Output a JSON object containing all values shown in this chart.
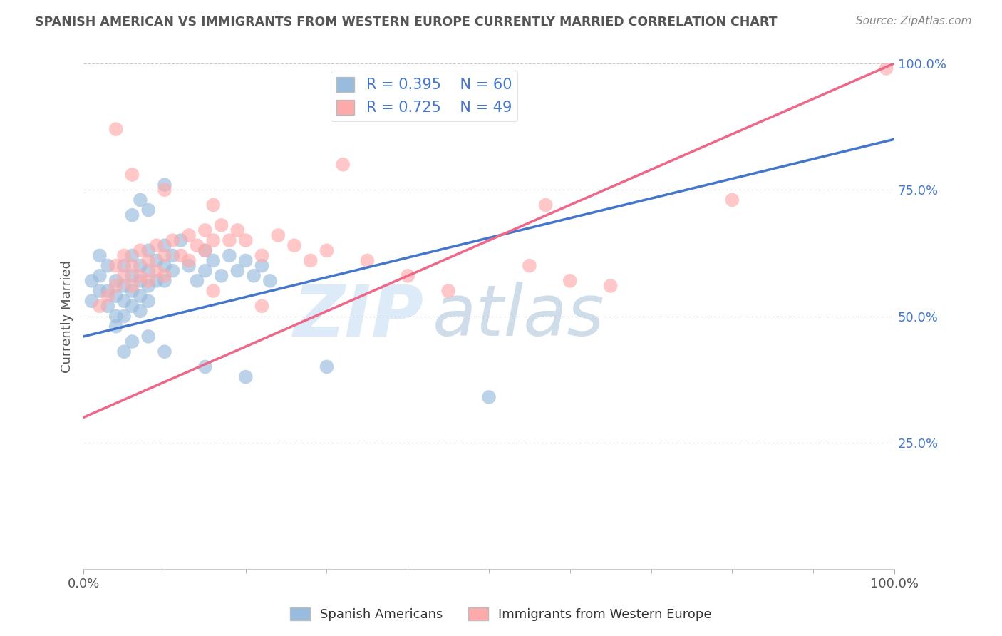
{
  "title": "SPANISH AMERICAN VS IMMIGRANTS FROM WESTERN EUROPE CURRENTLY MARRIED CORRELATION CHART",
  "source": "Source: ZipAtlas.com",
  "ylabel": "Currently Married",
  "xlabel": "",
  "xlim": [
    0,
    1
  ],
  "ylim": [
    0,
    1
  ],
  "xtick_labels": [
    "0.0%",
    "100.0%"
  ],
  "xtick_positions": [
    0,
    1
  ],
  "ytick_labels_right": [
    "25.0%",
    "50.0%",
    "75.0%",
    "100.0%"
  ],
  "ytick_positions_right": [
    0.25,
    0.5,
    0.75,
    1.0
  ],
  "legend_label1": "Spanish Americans",
  "legend_label2": "Immigrants from Western Europe",
  "R1": 0.395,
  "N1": 60,
  "R2": 0.725,
  "N2": 49,
  "blue_color": "#99BBDD",
  "pink_color": "#FFAAAA",
  "blue_line_color": "#4477CC",
  "pink_line_color": "#EE6688",
  "title_color": "#555555",
  "source_color": "#888888",
  "blue_scatter": [
    [
      0.01,
      0.57
    ],
    [
      0.01,
      0.53
    ],
    [
      0.02,
      0.58
    ],
    [
      0.02,
      0.62
    ],
    [
      0.02,
      0.55
    ],
    [
      0.03,
      0.6
    ],
    [
      0.03,
      0.55
    ],
    [
      0.03,
      0.52
    ],
    [
      0.04,
      0.57
    ],
    [
      0.04,
      0.54
    ],
    [
      0.04,
      0.5
    ],
    [
      0.04,
      0.48
    ],
    [
      0.05,
      0.6
    ],
    [
      0.05,
      0.56
    ],
    [
      0.05,
      0.53
    ],
    [
      0.05,
      0.5
    ],
    [
      0.06,
      0.62
    ],
    [
      0.06,
      0.58
    ],
    [
      0.06,
      0.55
    ],
    [
      0.06,
      0.52
    ],
    [
      0.07,
      0.6
    ],
    [
      0.07,
      0.57
    ],
    [
      0.07,
      0.54
    ],
    [
      0.07,
      0.51
    ],
    [
      0.08,
      0.63
    ],
    [
      0.08,
      0.59
    ],
    [
      0.08,
      0.56
    ],
    [
      0.08,
      0.53
    ],
    [
      0.09,
      0.61
    ],
    [
      0.09,
      0.57
    ],
    [
      0.1,
      0.64
    ],
    [
      0.1,
      0.6
    ],
    [
      0.1,
      0.57
    ],
    [
      0.11,
      0.62
    ],
    [
      0.11,
      0.59
    ],
    [
      0.12,
      0.65
    ],
    [
      0.13,
      0.6
    ],
    [
      0.14,
      0.57
    ],
    [
      0.15,
      0.63
    ],
    [
      0.15,
      0.59
    ],
    [
      0.16,
      0.61
    ],
    [
      0.17,
      0.58
    ],
    [
      0.18,
      0.62
    ],
    [
      0.19,
      0.59
    ],
    [
      0.2,
      0.61
    ],
    [
      0.21,
      0.58
    ],
    [
      0.22,
      0.6
    ],
    [
      0.23,
      0.57
    ],
    [
      0.06,
      0.7
    ],
    [
      0.07,
      0.73
    ],
    [
      0.08,
      0.71
    ],
    [
      0.1,
      0.76
    ],
    [
      0.05,
      0.43
    ],
    [
      0.06,
      0.45
    ],
    [
      0.08,
      0.46
    ],
    [
      0.1,
      0.43
    ],
    [
      0.15,
      0.4
    ],
    [
      0.2,
      0.38
    ],
    [
      0.3,
      0.4
    ],
    [
      0.5,
      0.34
    ]
  ],
  "pink_scatter": [
    [
      0.02,
      0.52
    ],
    [
      0.03,
      0.54
    ],
    [
      0.04,
      0.56
    ],
    [
      0.04,
      0.6
    ],
    [
      0.05,
      0.58
    ],
    [
      0.05,
      0.62
    ],
    [
      0.06,
      0.6
    ],
    [
      0.06,
      0.56
    ],
    [
      0.07,
      0.63
    ],
    [
      0.07,
      0.58
    ],
    [
      0.08,
      0.61
    ],
    [
      0.08,
      0.57
    ],
    [
      0.09,
      0.64
    ],
    [
      0.09,
      0.59
    ],
    [
      0.1,
      0.62
    ],
    [
      0.1,
      0.58
    ],
    [
      0.11,
      0.65
    ],
    [
      0.12,
      0.62
    ],
    [
      0.13,
      0.66
    ],
    [
      0.13,
      0.61
    ],
    [
      0.14,
      0.64
    ],
    [
      0.15,
      0.67
    ],
    [
      0.15,
      0.63
    ],
    [
      0.16,
      0.65
    ],
    [
      0.17,
      0.68
    ],
    [
      0.18,
      0.65
    ],
    [
      0.19,
      0.67
    ],
    [
      0.2,
      0.65
    ],
    [
      0.22,
      0.62
    ],
    [
      0.24,
      0.66
    ],
    [
      0.26,
      0.64
    ],
    [
      0.28,
      0.61
    ],
    [
      0.3,
      0.63
    ],
    [
      0.35,
      0.61
    ],
    [
      0.4,
      0.58
    ],
    [
      0.45,
      0.55
    ],
    [
      0.55,
      0.6
    ],
    [
      0.6,
      0.57
    ],
    [
      0.65,
      0.56
    ],
    [
      0.04,
      0.87
    ],
    [
      0.32,
      0.8
    ],
    [
      0.57,
      0.72
    ],
    [
      0.06,
      0.78
    ],
    [
      0.1,
      0.75
    ],
    [
      0.16,
      0.72
    ],
    [
      0.8,
      0.73
    ],
    [
      0.99,
      0.99
    ],
    [
      0.16,
      0.55
    ],
    [
      0.22,
      0.52
    ]
  ],
  "blue_line": [
    [
      0.0,
      0.46
    ],
    [
      1.0,
      0.85
    ]
  ],
  "pink_line": [
    [
      0.0,
      0.3
    ],
    [
      1.0,
      1.0
    ]
  ],
  "grid_color": "#CCCCCC",
  "bg_color": "#FFFFFF",
  "watermark_zip": "ZIP",
  "watermark_atlas": "atlas",
  "watermark_zip_color": "#AACCEE",
  "watermark_atlas_color": "#88AACC"
}
